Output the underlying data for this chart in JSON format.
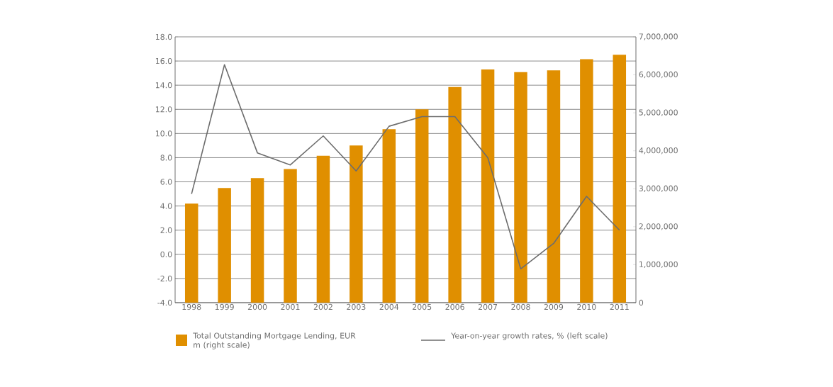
{
  "chart_data": {
    "type": "bar",
    "categories": [
      "1998",
      "1999",
      "2000",
      "2001",
      "2002",
      "2003",
      "2004",
      "2005",
      "2006",
      "2007",
      "2008",
      "2009",
      "2010",
      "2011"
    ],
    "series": [
      {
        "name": "Total Outstanding Mortgage Lending, EUR m (right scale)",
        "axis": "y2",
        "color": "#e08f00",
        "values": [
          2610000,
          3020000,
          3280000,
          3520000,
          3870000,
          4140000,
          4570000,
          5090000,
          5680000,
          6140000,
          6070000,
          6120000,
          6410000,
          6530000
        ]
      },
      {
        "name": "Year-on-year growth rates, % (left scale)",
        "type": "line",
        "color": "#6d6d6d",
        "values": [
          5.0,
          15.7,
          8.4,
          7.4,
          9.8,
          6.9,
          10.6,
          11.4,
          11.4,
          8.0,
          -1.2,
          0.9,
          4.8,
          2.0
        ]
      }
    ],
    "ylim": [
      -4,
      18
    ],
    "yticks": [
      {
        "value": -4,
        "label": "-4.0"
      },
      {
        "value": -2,
        "label": "-2.0"
      },
      {
        "value": 0,
        "label": "0.0"
      },
      {
        "value": 2,
        "label": "2.0"
      },
      {
        "value": 4,
        "label": "4.0"
      },
      {
        "value": 6,
        "label": "6.0"
      },
      {
        "value": 8,
        "label": "8.0"
      },
      {
        "value": 10,
        "label": "10.0"
      },
      {
        "value": 12,
        "label": "12.0"
      },
      {
        "value": 14,
        "label": "14.0"
      },
      {
        "value": 16,
        "label": "16.0"
      },
      {
        "value": 18,
        "label": "18.0"
      }
    ],
    "y2lim": [
      0,
      7000000
    ],
    "y2ticks": [
      0,
      {
        "value": 1000000,
        "label": "1,000,000"
      },
      {
        "value": 2000000,
        "label": "2,000,000"
      },
      {
        "value": 3000000,
        "label": "3,000,000"
      },
      {
        "value": 4000000,
        "label": "4,000,000"
      },
      {
        "value": 5000000,
        "label": "5,000,000"
      },
      {
        "value": 6000000,
        "label": "6,000,000"
      },
      {
        "value": 7000000,
        "label": "7,000,000"
      }
    ],
    "grid": "y",
    "legend": "bottom"
  }
}
